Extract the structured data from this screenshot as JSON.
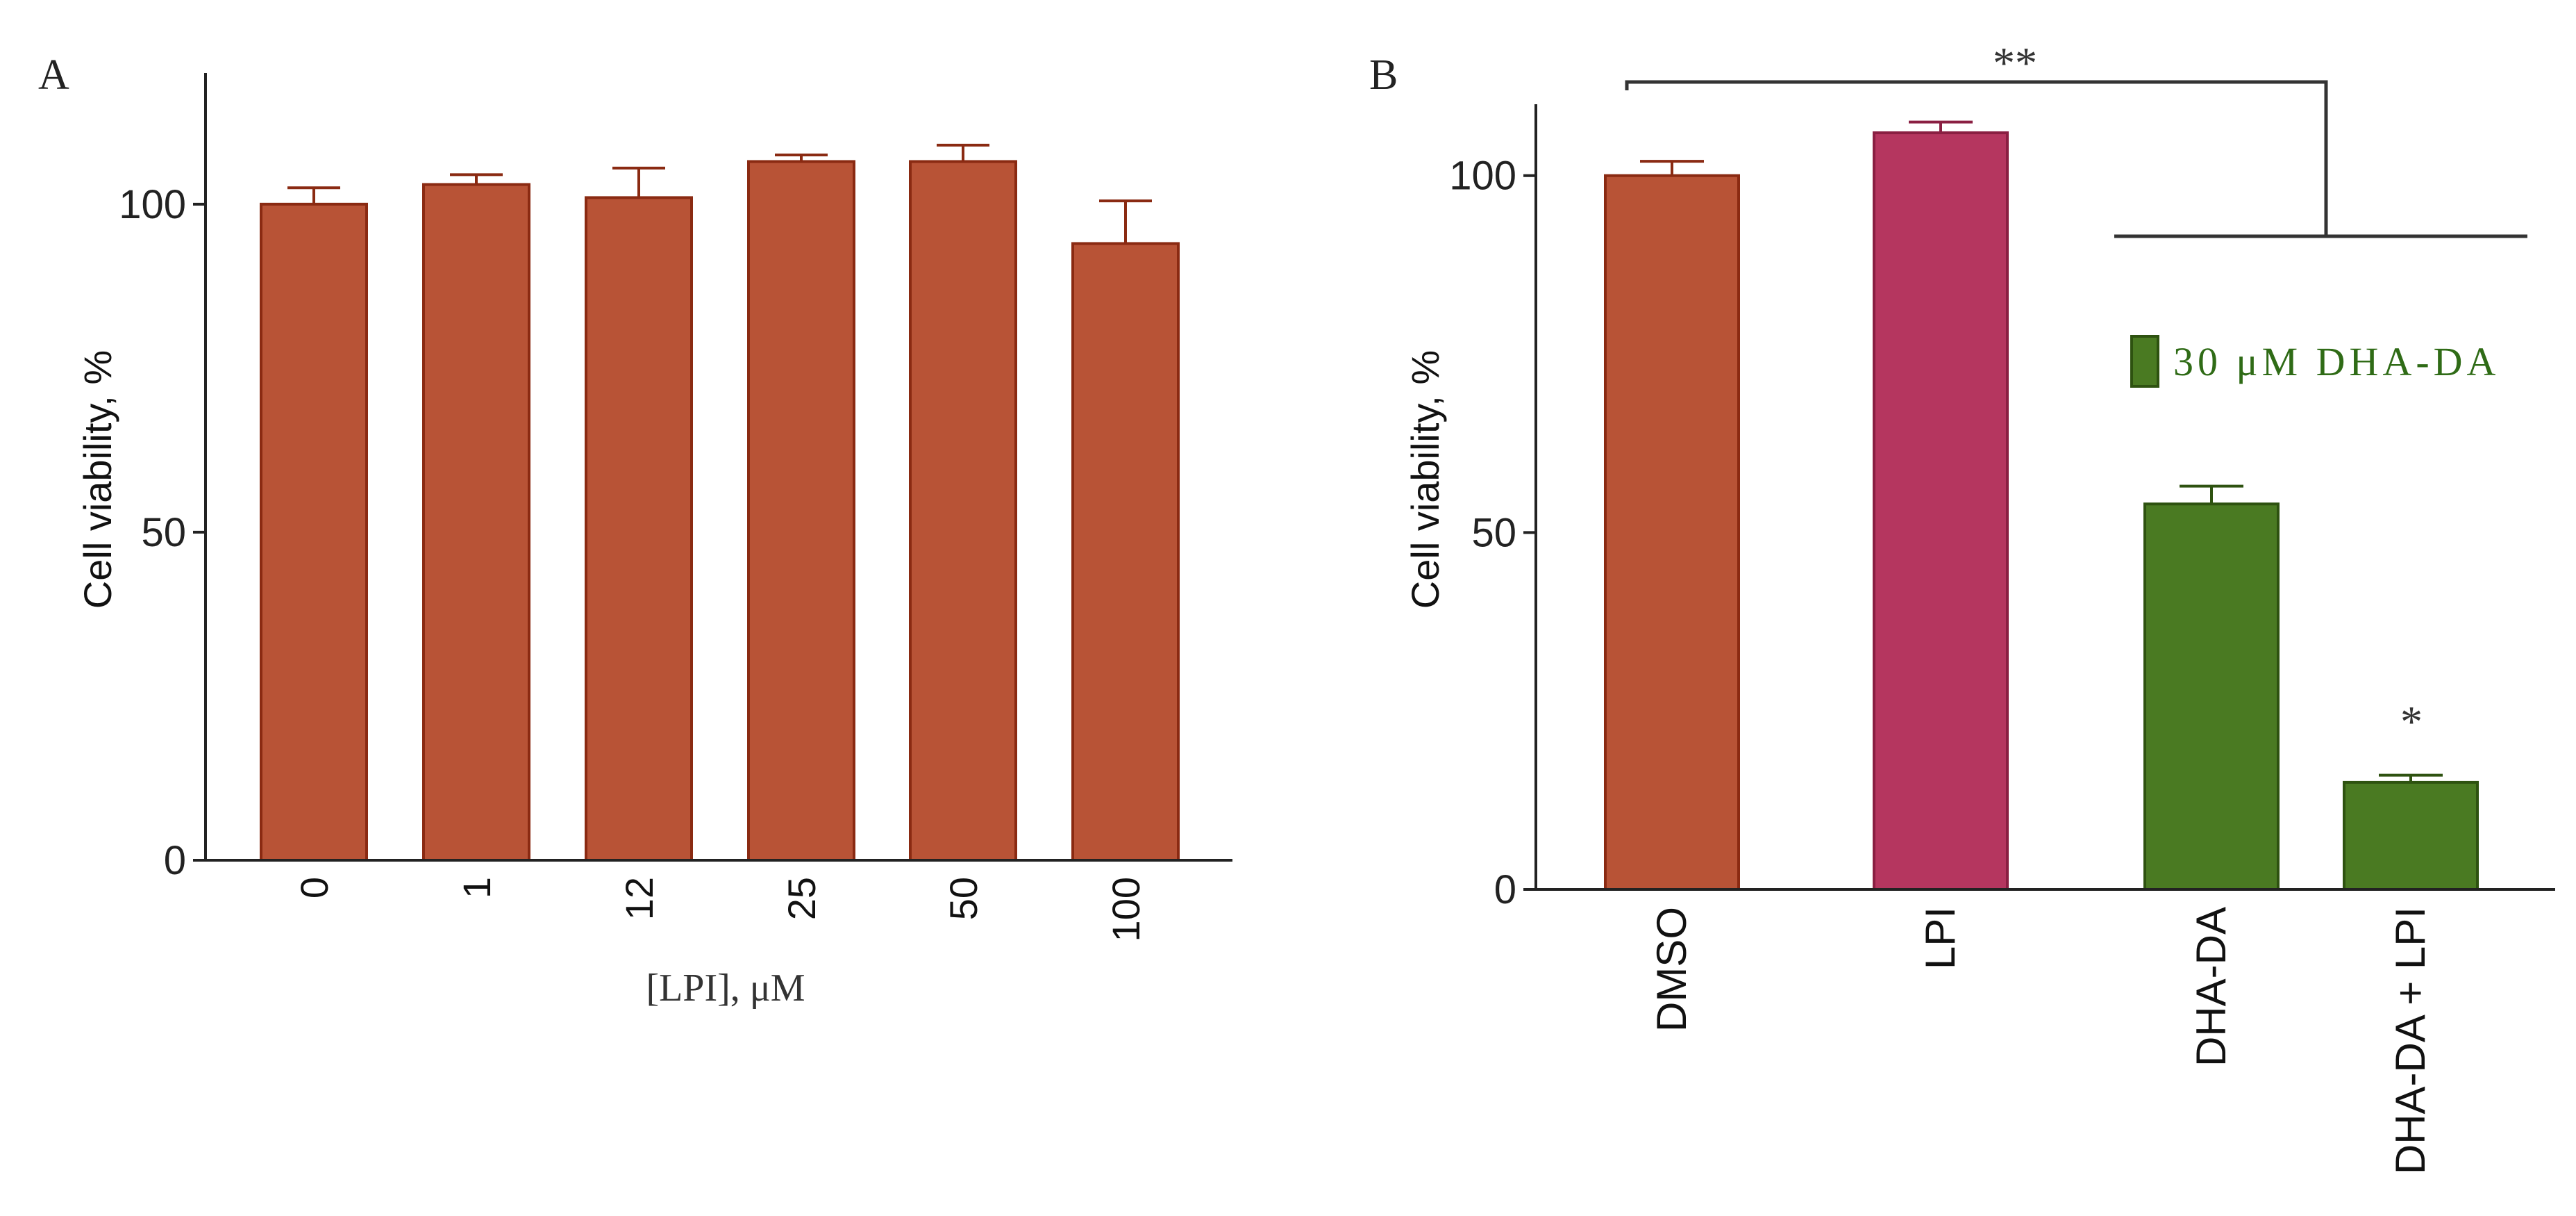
{
  "chart_data": [
    {
      "panel_label": "A",
      "type": "bar",
      "categories": [
        "0",
        "1",
        "12",
        "25",
        "50",
        "100"
      ],
      "values": [
        100,
        103,
        101,
        106.5,
        106.5,
        94
      ],
      "errors": [
        2.5,
        1.5,
        4.5,
        1,
        2.5,
        6.5
      ],
      "ylabel": "Cell viability, %",
      "xlabel": "[LPI], μM",
      "ylim": [
        0,
        120
      ],
      "yticks": [
        "0",
        "50",
        "100"
      ],
      "colors": {
        "fill": "#b85336",
        "stroke": "#8a2a12",
        "error": "#8a2a12"
      }
    },
    {
      "panel_label": "B",
      "type": "bar",
      "categories": [
        "DMSO",
        "LPI",
        "DHA-DA",
        "DHA-DA + LPI"
      ],
      "values": [
        100,
        106,
        54,
        15
      ],
      "errors": [
        2,
        1.5,
        2.5,
        1
      ],
      "ylabel": "Cell viability, %",
      "ylim": [
        0,
        110
      ],
      "yticks": [
        "0",
        "50",
        "100"
      ],
      "legend": {
        "label": "30 μM DHA-DA",
        "color": "#4a7a22"
      },
      "annotations": {
        "bracket": "**",
        "single": "*"
      },
      "colors": {
        "bars": [
          "#b85336",
          "#b5365f",
          "#4a7a22",
          "#4a7a22"
        ],
        "strokes": [
          "#8a2a12",
          "#8a1f42",
          "#2e5210",
          "#2e5210"
        ]
      }
    }
  ]
}
